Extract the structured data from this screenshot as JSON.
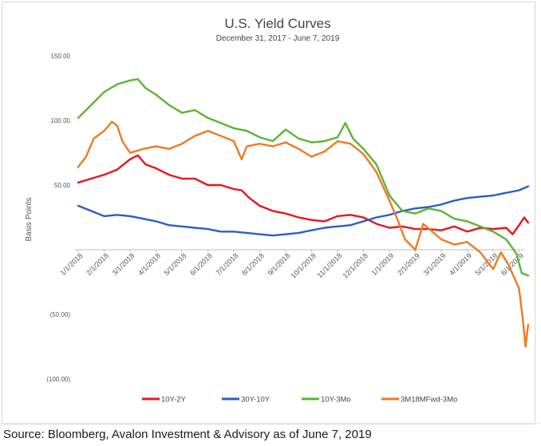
{
  "source": {
    "label": "Source",
    "text": ": Bloomberg, Avalon Investment & Advisory as of June 7, 2019"
  },
  "chart_data": {
    "type": "line",
    "title": "U.S. Yield Curves",
    "subtitle": "December 31, 2017 - June 7, 2019",
    "ylabel": "Basis Points",
    "xlabel": "",
    "ylim": [
      -100,
      150
    ],
    "yticks": [
      150,
      100,
      50,
      0,
      -50,
      -100
    ],
    "ytick_labels": [
      "150.00",
      "100.00",
      "50.00",
      "",
      "(50.00)",
      "(100.00)"
    ],
    "xtick_labels": [
      "1/1/2018",
      "2/1/2018",
      "3/1/2018",
      "4/1/2018",
      "5/1/2018",
      "6/1/2018",
      "7/1/2018",
      "8/1/2018",
      "9/1/2018",
      "10/1/2018",
      "11/1/2018",
      "12/1/2018",
      "1/1/2019",
      "2/1/2019",
      "3/1/2019",
      "4/1/2019",
      "5/1/2019",
      "6/1/2019"
    ],
    "x_start_label": "1/1/2018",
    "x_end_label": "6/7/2019",
    "grid": false,
    "legend_position": "bottom",
    "series": [
      {
        "name": "10Y-2Y",
        "color": "#e8161e",
        "points": [
          [
            0,
            52
          ],
          [
            0.5,
            55
          ],
          [
            1,
            58
          ],
          [
            1.5,
            62
          ],
          [
            2,
            70
          ],
          [
            2.3,
            73
          ],
          [
            2.6,
            66
          ],
          [
            3,
            63
          ],
          [
            3.5,
            58
          ],
          [
            4,
            55
          ],
          [
            4.5,
            55
          ],
          [
            5,
            50
          ],
          [
            5.5,
            50
          ],
          [
            6,
            47
          ],
          [
            6.3,
            46
          ],
          [
            6.6,
            40
          ],
          [
            7,
            34
          ],
          [
            7.5,
            30
          ],
          [
            8,
            28
          ],
          [
            8.5,
            25
          ],
          [
            9,
            23
          ],
          [
            9.5,
            22
          ],
          [
            10,
            26
          ],
          [
            10.5,
            27
          ],
          [
            11,
            25
          ],
          [
            11.5,
            20
          ],
          [
            12,
            17
          ],
          [
            12.5,
            18
          ],
          [
            13,
            16
          ],
          [
            13.5,
            16
          ],
          [
            14,
            15
          ],
          [
            14.5,
            18
          ],
          [
            15,
            14
          ],
          [
            15.5,
            17
          ],
          [
            16,
            16
          ],
          [
            16.5,
            17
          ],
          [
            16.75,
            12
          ],
          [
            17,
            19
          ],
          [
            17.2,
            25
          ],
          [
            17.35,
            21
          ]
        ]
      },
      {
        "name": "30Y-10Y",
        "color": "#2e5dbf",
        "points": [
          [
            0,
            34
          ],
          [
            0.5,
            30
          ],
          [
            1,
            26
          ],
          [
            1.5,
            27
          ],
          [
            2,
            26
          ],
          [
            2.5,
            24
          ],
          [
            3,
            22
          ],
          [
            3.5,
            19
          ],
          [
            4,
            18
          ],
          [
            4.5,
            17
          ],
          [
            5,
            16
          ],
          [
            5.5,
            14
          ],
          [
            6,
            14
          ],
          [
            6.5,
            13
          ],
          [
            7,
            12
          ],
          [
            7.5,
            11
          ],
          [
            8,
            12
          ],
          [
            8.5,
            13
          ],
          [
            9,
            15
          ],
          [
            9.5,
            17
          ],
          [
            10,
            18
          ],
          [
            10.5,
            19
          ],
          [
            11,
            22
          ],
          [
            11.5,
            25
          ],
          [
            12,
            27
          ],
          [
            12.5,
            30
          ],
          [
            13,
            32
          ],
          [
            13.5,
            33
          ],
          [
            14,
            35
          ],
          [
            14.5,
            38
          ],
          [
            15,
            40
          ],
          [
            15.5,
            41
          ],
          [
            16,
            42
          ],
          [
            16.5,
            44
          ],
          [
            17,
            46
          ],
          [
            17.35,
            49
          ]
        ]
      },
      {
        "name": "10Y-3Mo",
        "color": "#5bb432",
        "points": [
          [
            0,
            102
          ],
          [
            0.5,
            112
          ],
          [
            1,
            122
          ],
          [
            1.5,
            128
          ],
          [
            2,
            131
          ],
          [
            2.3,
            132
          ],
          [
            2.6,
            125
          ],
          [
            3,
            120
          ],
          [
            3.5,
            112
          ],
          [
            4,
            106
          ],
          [
            4.5,
            108
          ],
          [
            5,
            102
          ],
          [
            5.5,
            98
          ],
          [
            6,
            94
          ],
          [
            6.5,
            92
          ],
          [
            7,
            87
          ],
          [
            7.5,
            84
          ],
          [
            8,
            93
          ],
          [
            8.5,
            86
          ],
          [
            9,
            83
          ],
          [
            9.5,
            84
          ],
          [
            10,
            87
          ],
          [
            10.3,
            98
          ],
          [
            10.6,
            86
          ],
          [
            11,
            78
          ],
          [
            11.5,
            66
          ],
          [
            12,
            42
          ],
          [
            12.5,
            30
          ],
          [
            13,
            28
          ],
          [
            13.5,
            32
          ],
          [
            14,
            30
          ],
          [
            14.5,
            24
          ],
          [
            15,
            22
          ],
          [
            15.5,
            18
          ],
          [
            16,
            14
          ],
          [
            16.5,
            8
          ],
          [
            16.9,
            -3
          ],
          [
            17.1,
            -18
          ],
          [
            17.35,
            -20
          ]
        ]
      },
      {
        "name": "3M18MFwd-3Mo",
        "color": "#ee7a22",
        "points": [
          [
            0,
            64
          ],
          [
            0.3,
            72
          ],
          [
            0.6,
            86
          ],
          [
            1,
            92
          ],
          [
            1.3,
            99
          ],
          [
            1.5,
            96
          ],
          [
            1.7,
            84
          ],
          [
            2,
            75
          ],
          [
            2.5,
            78
          ],
          [
            3,
            80
          ],
          [
            3.5,
            78
          ],
          [
            4,
            82
          ],
          [
            4.5,
            88
          ],
          [
            5,
            92
          ],
          [
            5.5,
            88
          ],
          [
            6,
            84
          ],
          [
            6.3,
            70
          ],
          [
            6.5,
            80
          ],
          [
            7,
            82
          ],
          [
            7.5,
            80
          ],
          [
            8,
            83
          ],
          [
            8.5,
            78
          ],
          [
            9,
            72
          ],
          [
            9.5,
            76
          ],
          [
            10,
            84
          ],
          [
            10.5,
            82
          ],
          [
            11,
            74
          ],
          [
            11.5,
            60
          ],
          [
            12,
            38
          ],
          [
            12.3,
            24
          ],
          [
            12.6,
            8
          ],
          [
            13,
            0
          ],
          [
            13.3,
            20
          ],
          [
            13.6,
            15
          ],
          [
            14,
            8
          ],
          [
            14.5,
            4
          ],
          [
            15,
            6
          ],
          [
            15.5,
            -2
          ],
          [
            16,
            -15
          ],
          [
            16.3,
            -2
          ],
          [
            16.6,
            -12
          ],
          [
            17,
            -30
          ],
          [
            17.15,
            -55
          ],
          [
            17.25,
            -75
          ],
          [
            17.35,
            -58
          ]
        ]
      }
    ]
  }
}
